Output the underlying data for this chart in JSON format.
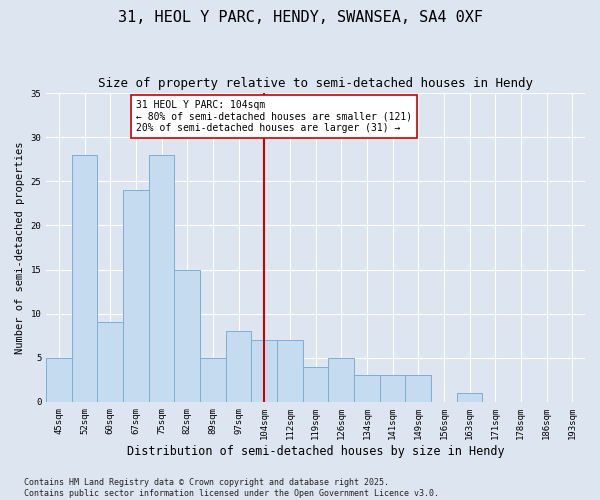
{
  "title": "31, HEOL Y PARC, HENDY, SWANSEA, SA4 0XF",
  "subtitle": "Size of property relative to semi-detached houses in Hendy",
  "xlabel": "Distribution of semi-detached houses by size in Hendy",
  "ylabel": "Number of semi-detached properties",
  "categories": [
    "45sqm",
    "52sqm",
    "60sqm",
    "67sqm",
    "75sqm",
    "82sqm",
    "89sqm",
    "97sqm",
    "104sqm",
    "112sqm",
    "119sqm",
    "126sqm",
    "134sqm",
    "141sqm",
    "149sqm",
    "156sqm",
    "163sqm",
    "171sqm",
    "178sqm",
    "186sqm",
    "193sqm"
  ],
  "values": [
    5,
    28,
    9,
    24,
    28,
    15,
    5,
    8,
    7,
    7,
    4,
    5,
    3,
    3,
    3,
    0,
    1,
    0,
    0,
    0,
    0
  ],
  "bar_color": "#c5dcf0",
  "bar_edgecolor": "#7bafd4",
  "highlight_index": 8,
  "vline_color": "#cc0000",
  "annotation_text": "31 HEOL Y PARC: 104sqm\n← 80% of semi-detached houses are smaller (121)\n20% of semi-detached houses are larger (31) →",
  "annotation_box_color": "#ffffff",
  "annotation_box_edgecolor": "#cc0000",
  "ylim": [
    0,
    35
  ],
  "yticks": [
    0,
    5,
    10,
    15,
    20,
    25,
    30,
    35
  ],
  "background_color": "#dde6f0",
  "plot_background": "#dde6f0",
  "footer_text": "Contains HM Land Registry data © Crown copyright and database right 2025.\nContains public sector information licensed under the Open Government Licence v3.0.",
  "title_fontsize": 11,
  "subtitle_fontsize": 9,
  "xlabel_fontsize": 8.5,
  "ylabel_fontsize": 7.5,
  "tick_fontsize": 6.5,
  "footer_fontsize": 6,
  "annotation_fontsize": 7
}
